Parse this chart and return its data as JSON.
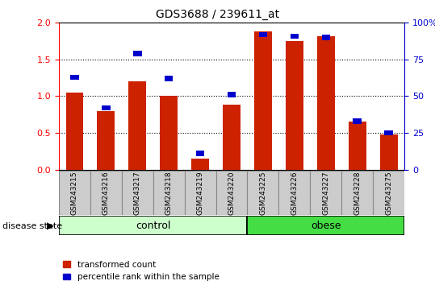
{
  "title": "GDS3688 / 239611_at",
  "samples": [
    "GSM243215",
    "GSM243216",
    "GSM243217",
    "GSM243218",
    "GSM243219",
    "GSM243220",
    "GSM243225",
    "GSM243226",
    "GSM243227",
    "GSM243228",
    "GSM243275"
  ],
  "red_values": [
    1.05,
    0.8,
    1.2,
    1.0,
    0.15,
    0.88,
    1.88,
    1.75,
    1.82,
    0.65,
    0.48
  ],
  "blue_values_pct": [
    63,
    42,
    79,
    62,
    11,
    51,
    92,
    91,
    90,
    33,
    25
  ],
  "control_count": 6,
  "obese_count": 5,
  "ylim_left": [
    0,
    2.0
  ],
  "ylim_right": [
    0,
    100
  ],
  "yticks_left": [
    0,
    0.5,
    1.0,
    1.5,
    2.0
  ],
  "yticks_right": [
    0,
    25,
    50,
    75,
    100
  ],
  "red_color": "#cc2200",
  "blue_color": "#0000cc",
  "ctrl_color": "#ccffcc",
  "obese_color": "#44dd44",
  "sample_bg": "#cccccc",
  "plot_bg": "#ffffff",
  "disease_state_label": "disease state",
  "legend_items": [
    "transformed count",
    "percentile rank within the sample"
  ]
}
